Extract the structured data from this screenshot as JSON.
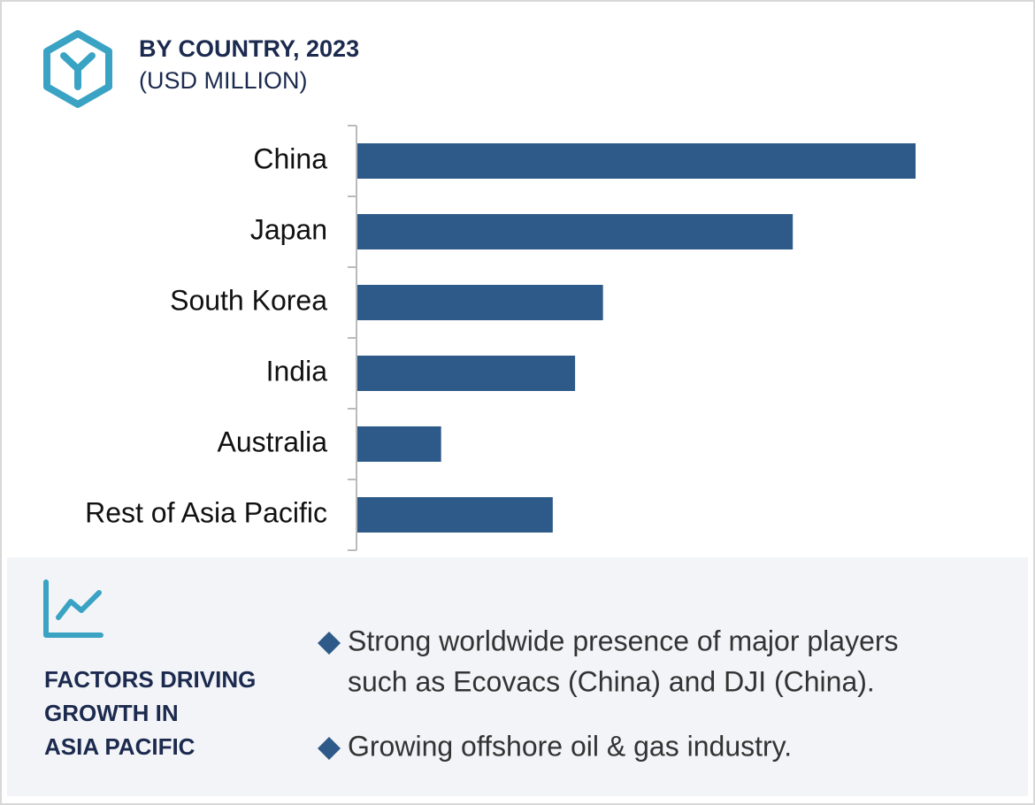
{
  "chart_data": {
    "type": "bar",
    "orientation": "horizontal",
    "title": "BY COUNTRY, 2023",
    "subtitle": "(USD MILLION)",
    "categories": [
      "China",
      "Japan",
      "South Korea",
      "India",
      "Australia",
      "Rest of Asia Pacific"
    ],
    "values": [
      100,
      78,
      44,
      39,
      15,
      35
    ],
    "color": "#2d5a88"
  },
  "factors": {
    "title": [
      "FACTORS DRIVING",
      "GROWTH IN",
      "ASIA PACIFIC"
    ],
    "items": [
      [
        "Strong worldwide presence of major players",
        "such as Ecovacs (China) and DJI (China)."
      ],
      [
        "Growing offshore oil & gas industry."
      ]
    ]
  }
}
